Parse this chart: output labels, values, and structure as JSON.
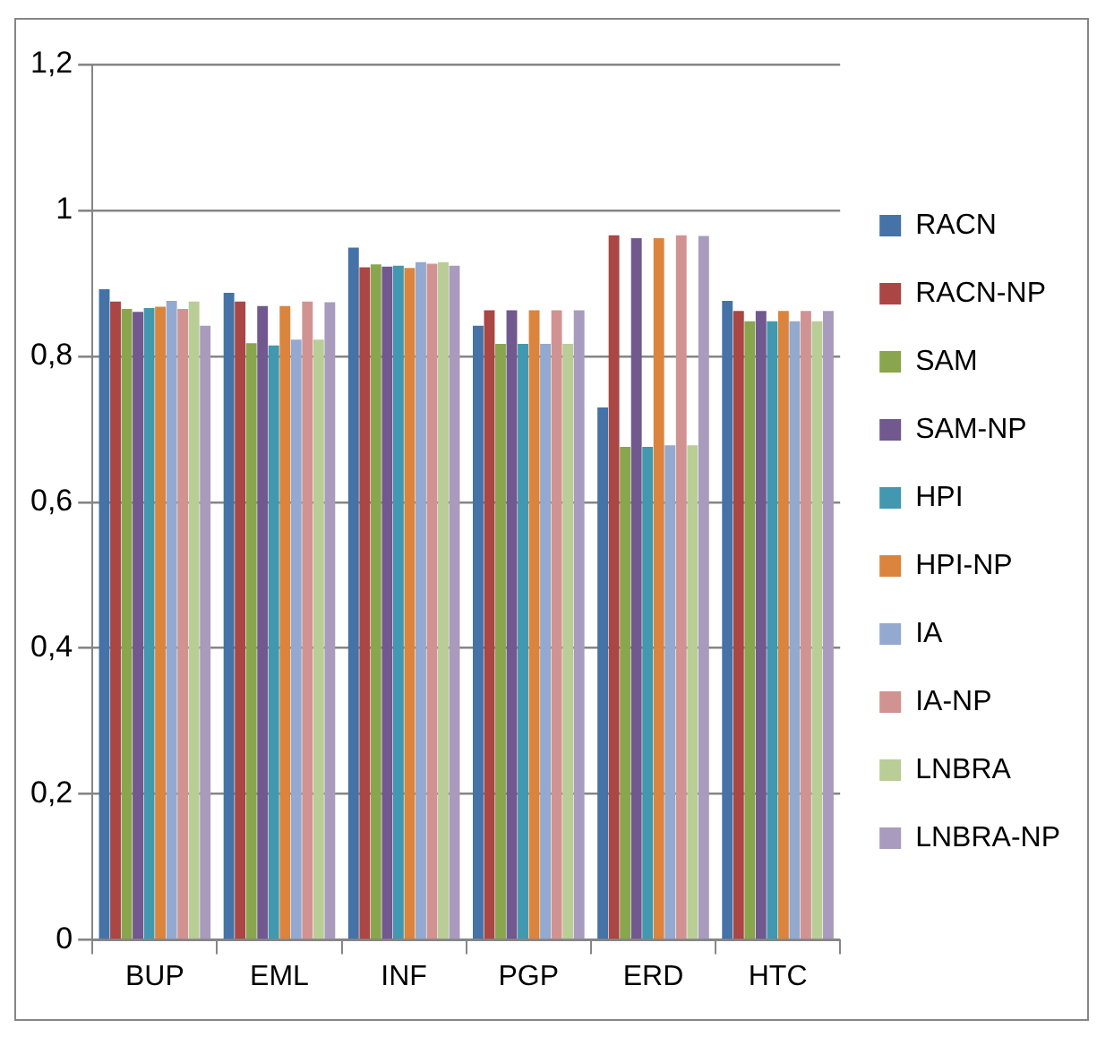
{
  "chart_data": {
    "type": "bar",
    "categories": [
      "BUP",
      "EML",
      "INF",
      "PGP",
      "ERD",
      "HTC"
    ],
    "series": [
      {
        "name": "RACN",
        "color": "#4572a7",
        "values": [
          0.892,
          0.887,
          0.949,
          0.842,
          0.73,
          0.876
        ]
      },
      {
        "name": "RACN-NP",
        "color": "#aa4643",
        "values": [
          0.875,
          0.875,
          0.922,
          0.863,
          0.966,
          0.862
        ]
      },
      {
        "name": "SAM",
        "color": "#89a54e",
        "values": [
          0.865,
          0.818,
          0.926,
          0.817,
          0.676,
          0.848
        ]
      },
      {
        "name": "SAM-NP",
        "color": "#71588f",
        "values": [
          0.861,
          0.869,
          0.923,
          0.863,
          0.962,
          0.862
        ]
      },
      {
        "name": "HPI",
        "color": "#4198af",
        "values": [
          0.866,
          0.815,
          0.924,
          0.817,
          0.676,
          0.848
        ]
      },
      {
        "name": "HPI-NP",
        "color": "#db843d",
        "values": [
          0.868,
          0.869,
          0.921,
          0.863,
          0.962,
          0.862
        ]
      },
      {
        "name": "IA",
        "color": "#93a9cf",
        "values": [
          0.876,
          0.823,
          0.929,
          0.817,
          0.678,
          0.848
        ]
      },
      {
        "name": "IA-NP",
        "color": "#d19392",
        "values": [
          0.865,
          0.875,
          0.927,
          0.863,
          0.966,
          0.862
        ]
      },
      {
        "name": "LNBRA",
        "color": "#b9cd96",
        "values": [
          0.875,
          0.823,
          0.929,
          0.817,
          0.678,
          0.848
        ]
      },
      {
        "name": "LNBRA-NP",
        "color": "#a99bbd",
        "values": [
          0.842,
          0.874,
          0.924,
          0.863,
          0.965,
          0.862
        ]
      }
    ],
    "ylim": [
      0,
      1.2
    ],
    "yticks": [
      0,
      {
        "value": 0.2,
        "label": "0,2"
      },
      {
        "value": 0.4,
        "label": "0,4"
      },
      {
        "value": 0.6,
        "label": "0,6"
      },
      {
        "value": 0.8,
        "label": "0,8"
      },
      1,
      {
        "value": 1.2,
        "label": "1,2"
      }
    ],
    "grid": "y",
    "legend": "right"
  }
}
